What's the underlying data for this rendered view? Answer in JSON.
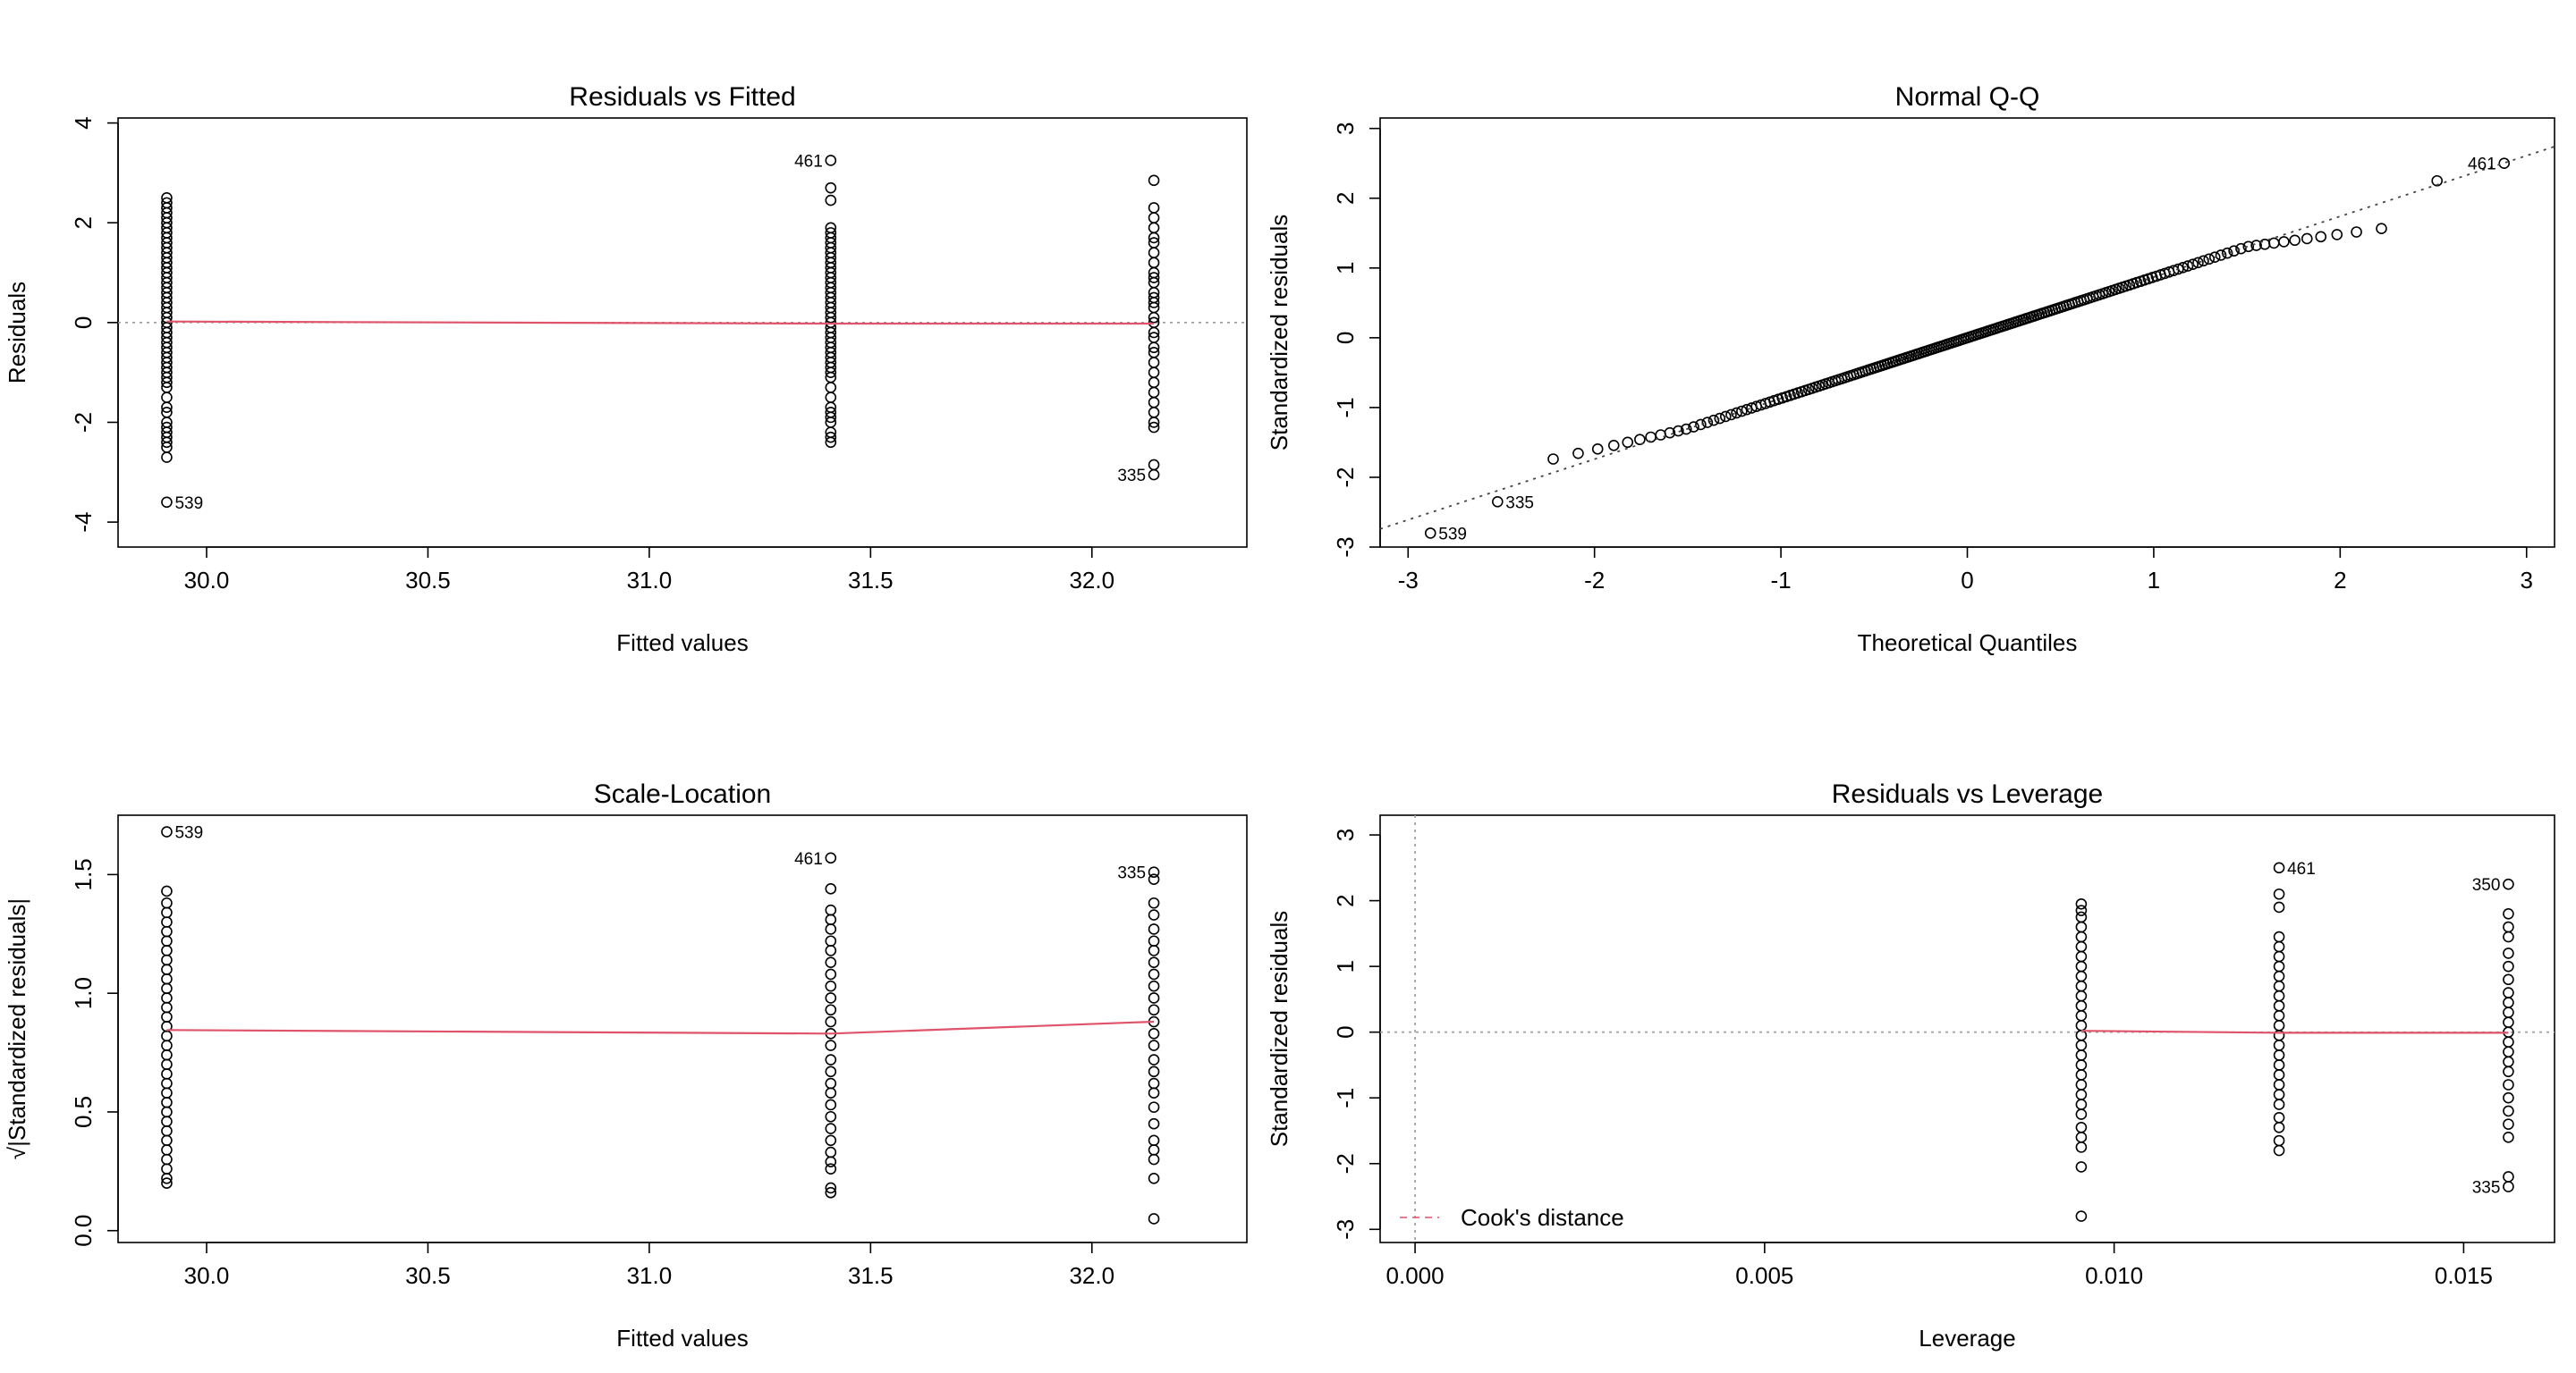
{
  "chart_data": [
    {
      "type": "scatter",
      "title": "Residuals vs Fitted",
      "xlabel": "Fitted values",
      "ylabel": "Residuals",
      "xlim": [
        29.8,
        32.35
      ],
      "ylim": [
        -4.5,
        4.1
      ],
      "x_ticks": [
        "30.0",
        "30.5",
        "31.0",
        "31.5",
        "32.0"
      ],
      "y_ticks": [
        "-4",
        "-2",
        "0",
        "2",
        "4"
      ],
      "groups": [
        {
          "x": 29.91,
          "y": [
            2.5,
            2.4,
            2.3,
            2.2,
            2.1,
            2.0,
            1.9,
            1.8,
            1.7,
            1.6,
            1.5,
            1.4,
            1.3,
            1.2,
            1.1,
            1.0,
            0.9,
            0.8,
            0.7,
            0.6,
            0.5,
            0.4,
            0.3,
            0.2,
            0.1,
            0.0,
            -0.1,
            -0.2,
            -0.3,
            -0.4,
            -0.5,
            -0.6,
            -0.7,
            -0.8,
            -0.9,
            -1.0,
            -1.1,
            -1.2,
            -1.3,
            -1.5,
            -1.7,
            -1.8,
            -2.0,
            -2.1,
            -2.2,
            -2.3,
            -2.4,
            -2.5,
            -2.7,
            -3.6
          ]
        },
        {
          "x": 31.41,
          "y": [
            3.25,
            2.7,
            2.45,
            1.9,
            1.8,
            1.7,
            1.6,
            1.5,
            1.4,
            1.3,
            1.2,
            1.1,
            1.0,
            0.9,
            0.8,
            0.7,
            0.6,
            0.5,
            0.4,
            0.3,
            0.2,
            0.1,
            0.0,
            -0.1,
            -0.2,
            -0.3,
            -0.4,
            -0.5,
            -0.6,
            -0.7,
            -0.8,
            -0.9,
            -1.0,
            -1.1,
            -1.3,
            -1.5,
            -1.7,
            -1.8,
            -1.9,
            -2.0,
            -2.2,
            -2.3,
            -2.4
          ]
        },
        {
          "x": 32.14,
          "y": [
            2.85,
            2.3,
            2.1,
            1.9,
            1.7,
            1.6,
            1.4,
            1.2,
            1.0,
            0.9,
            0.8,
            0.6,
            0.5,
            0.4,
            0.3,
            0.1,
            0.0,
            -0.2,
            -0.3,
            -0.5,
            -0.6,
            -0.8,
            -1.0,
            -1.2,
            -1.4,
            -1.6,
            -1.8,
            -2.0,
            -2.1,
            -2.85,
            -3.05
          ]
        }
      ],
      "smooth": [
        [
          29.91,
          0.02
        ],
        [
          31.41,
          -0.02
        ],
        [
          32.14,
          -0.02
        ]
      ],
      "labels": [
        {
          "text": "539",
          "x": 29.91,
          "y": -3.6,
          "pos": "right"
        },
        {
          "text": "461",
          "x": 31.41,
          "y": 3.25,
          "pos": "left"
        },
        {
          "text": "335",
          "x": 32.14,
          "y": -3.05,
          "pos": "left"
        }
      ]
    },
    {
      "type": "scatter",
      "title": "Normal Q-Q",
      "xlabel": "Theoretical Quantiles",
      "ylabel": "Standardized residuals",
      "xlim": [
        -3.15,
        3.15
      ],
      "ylim": [
        -3.0,
        3.15
      ],
      "x_ticks": [
        "-3",
        "-2",
        "-1",
        "0",
        "1",
        "2",
        "3"
      ],
      "y_ticks": [
        "-3",
        "-2",
        "-1",
        "0",
        "1",
        "2",
        "3"
      ],
      "qq_slope": 0.87,
      "qq_intercept": 0.0,
      "labels": [
        {
          "text": "461",
          "x": 2.88,
          "y": 2.5,
          "pos": "left"
        },
        {
          "text": "335",
          "x": -2.52,
          "y": -2.35,
          "pos": "right"
        },
        {
          "text": "539",
          "x": -2.88,
          "y": -2.8,
          "pos": "right"
        }
      ]
    },
    {
      "type": "scatter",
      "title": "Scale-Location",
      "xlabel": "Fitted values",
      "ylabel": "√|Standardized residuals|",
      "xlim": [
        29.8,
        32.35
      ],
      "ylim": [
        -0.05,
        1.75
      ],
      "x_ticks": [
        "30.0",
        "30.5",
        "31.0",
        "31.5",
        "32.0"
      ],
      "y_ticks": [
        "0.0",
        "0.5",
        "1.0",
        "1.5"
      ],
      "groups": [
        {
          "x": 29.91,
          "y": [
            1.68,
            1.43,
            1.38,
            1.34,
            1.3,
            1.26,
            1.22,
            1.18,
            1.14,
            1.1,
            1.06,
            1.02,
            0.98,
            0.94,
            0.9,
            0.86,
            0.82,
            0.78,
            0.74,
            0.7,
            0.66,
            0.62,
            0.58,
            0.54,
            0.5,
            0.46,
            0.42,
            0.38,
            0.34,
            0.3,
            0.26,
            0.22,
            0.2
          ]
        },
        {
          "x": 31.41,
          "y": [
            1.57,
            1.44,
            1.35,
            1.31,
            1.27,
            1.22,
            1.18,
            1.13,
            1.08,
            1.03,
            0.98,
            0.93,
            0.88,
            0.83,
            0.78,
            0.72,
            0.67,
            0.62,
            0.58,
            0.53,
            0.48,
            0.43,
            0.38,
            0.33,
            0.29,
            0.26,
            0.18,
            0.16
          ]
        },
        {
          "x": 32.14,
          "y": [
            1.51,
            1.48,
            1.38,
            1.33,
            1.27,
            1.22,
            1.18,
            1.13,
            1.08,
            1.03,
            0.98,
            0.93,
            0.88,
            0.83,
            0.78,
            0.72,
            0.67,
            0.62,
            0.58,
            0.52,
            0.45,
            0.38,
            0.34,
            0.3,
            0.22,
            0.05
          ]
        }
      ],
      "smooth": [
        [
          29.91,
          0.845
        ],
        [
          31.41,
          0.83
        ],
        [
          32.14,
          0.88
        ]
      ],
      "labels": [
        {
          "text": "539",
          "x": 29.91,
          "y": 1.68,
          "pos": "right"
        },
        {
          "text": "461",
          "x": 31.41,
          "y": 1.57,
          "pos": "left"
        },
        {
          "text": "335",
          "x": 32.14,
          "y": 1.51,
          "pos": "left"
        }
      ]
    },
    {
      "type": "scatter",
      "title": "Residuals vs Leverage",
      "xlabel": "Leverage",
      "ylabel": "Standardized residuals",
      "xlim": [
        -0.0005,
        0.0163
      ],
      "ylim": [
        -3.2,
        3.3
      ],
      "x_ticks": [
        "0.000",
        "0.005",
        "0.010",
        "0.015"
      ],
      "y_ticks": [
        "-3",
        "-2",
        "-1",
        "0",
        "1",
        "2",
        "3"
      ],
      "groups": [
        {
          "x": 0.00953,
          "y": [
            1.95,
            1.85,
            1.75,
            1.6,
            1.45,
            1.3,
            1.15,
            1.0,
            0.85,
            0.7,
            0.55,
            0.4,
            0.25,
            0.1,
            -0.05,
            -0.2,
            -0.35,
            -0.5,
            -0.65,
            -0.8,
            -0.95,
            -1.1,
            -1.25,
            -1.45,
            -1.6,
            -1.75,
            -2.05,
            -2.8
          ]
        },
        {
          "x": 0.01236,
          "y": [
            2.5,
            2.1,
            1.9,
            1.45,
            1.3,
            1.15,
            1.0,
            0.85,
            0.7,
            0.55,
            0.4,
            0.25,
            0.1,
            -0.05,
            -0.2,
            -0.35,
            -0.5,
            -0.65,
            -0.8,
            -0.95,
            -1.1,
            -1.3,
            -1.45,
            -1.65,
            -1.8
          ]
        },
        {
          "x": 0.01564,
          "y": [
            2.25,
            1.8,
            1.6,
            1.45,
            1.2,
            1.0,
            0.8,
            0.6,
            0.45,
            0.3,
            0.15,
            0.0,
            -0.15,
            -0.3,
            -0.45,
            -0.6,
            -0.8,
            -1.0,
            -1.2,
            -1.4,
            -1.6,
            -2.2,
            -2.35
          ]
        }
      ],
      "smooth": [
        [
          0.00953,
          0.02
        ],
        [
          0.01236,
          -0.01
        ],
        [
          0.01564,
          -0.01
        ]
      ],
      "labels": [
        {
          "text": "461",
          "x": 0.01236,
          "y": 2.5,
          "pos": "right"
        },
        {
          "text": "350",
          "x": 0.01564,
          "y": 2.25,
          "pos": "left"
        },
        {
          "text": "335",
          "x": 0.01564,
          "y": -2.35,
          "pos": "left"
        }
      ],
      "legend": {
        "label": "Cook's distance",
        "position": "bottom-left"
      }
    }
  ],
  "colors": {
    "smooth": "#df536b",
    "reference": "#9a9a9a",
    "points": "#000000"
  }
}
